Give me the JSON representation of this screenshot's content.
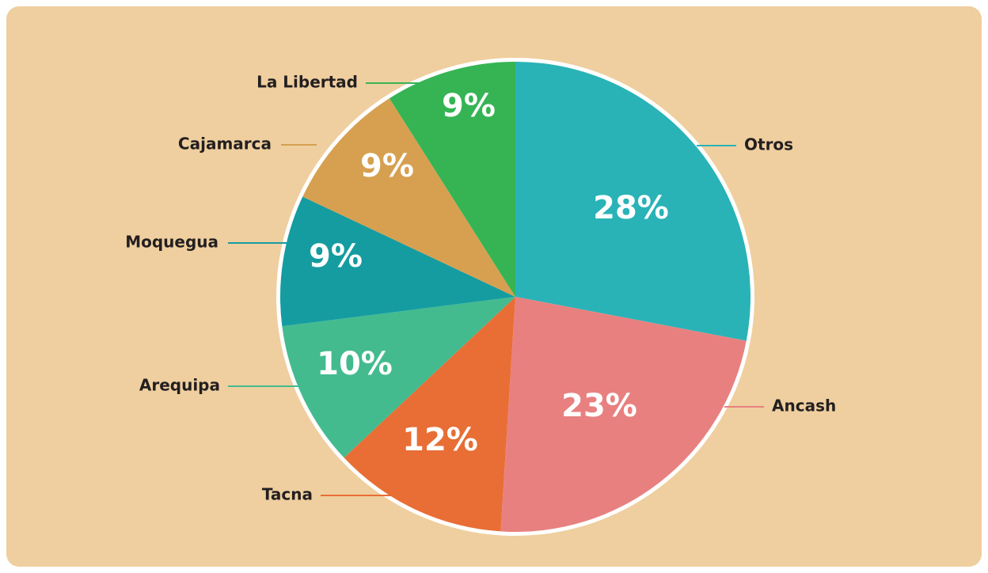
{
  "chart_data": {
    "type": "pie",
    "categories": [
      "Otros",
      "Ancash",
      "Tacna",
      "Arequipa",
      "Moquegua",
      "Cajamarca",
      "La Libertad"
    ],
    "values": [
      28,
      23,
      12,
      10,
      9,
      9,
      9
    ],
    "value_labels": [
      "28%",
      "23%",
      "12%",
      "10%",
      "9%",
      "9%",
      "9%"
    ],
    "colors": [
      "#29b3b7",
      "#e88080",
      "#e86e35",
      "#43bb8f",
      "#159ca0",
      "#d6a050",
      "#36b454"
    ]
  }
}
